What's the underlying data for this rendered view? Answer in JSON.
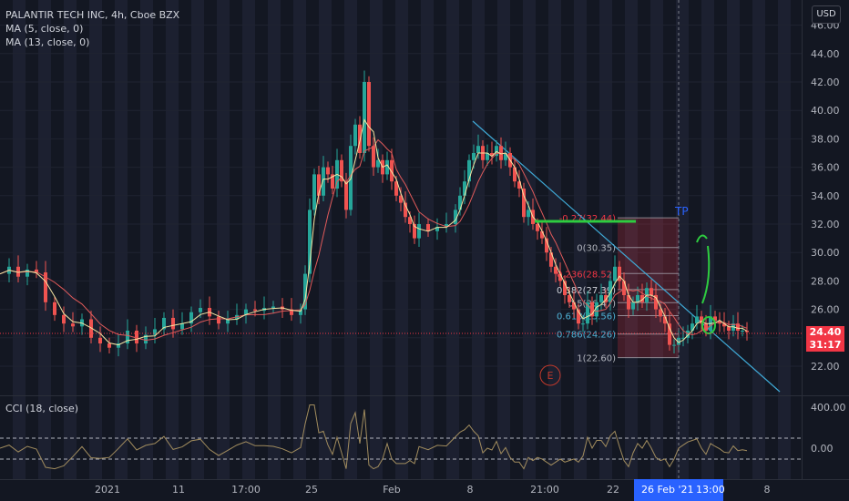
{
  "legend": {
    "symbol": "PALANTIR TECH INC, 4h, Cboe BZX",
    "ma1": "MA (5, close, 0)",
    "ma2": "MA (13, close, 0)",
    "cci": "CCI (18, close)"
  },
  "currency_button": "USD",
  "price_tag": {
    "price": "24.40",
    "countdown": "31:17"
  },
  "crosshair_date": {
    "date": "26 Feb '21",
    "time": "13:00"
  },
  "colors": {
    "up": "#26a69a",
    "down": "#ef5350",
    "ma5": "#f5e6a3",
    "ma13": "#e05a5a",
    "trendline": "#3fa9d6",
    "green_mark": "#2ecc40",
    "fib_band": "#f23645"
  },
  "chart_data": [
    {
      "type": "candlestick",
      "title": "PALANTIR TECH INC, 4h, Cboe BZX",
      "yticks": [
        "46.00",
        "44.00",
        "42.00",
        "40.00",
        "38.00",
        "36.00",
        "34.00",
        "32.00",
        "30.00",
        "28.00",
        "26.00",
        "24.00",
        "22.00"
      ],
      "ylim": [
        21.5,
        46.3
      ],
      "xticks": [
        "2021",
        "11",
        "17:00",
        "25",
        "Feb",
        "8",
        "21:00",
        "22",
        "26 Feb '21",
        "13:00",
        "8"
      ],
      "close_path": [
        [
          0,
          28.5
        ],
        [
          10,
          29.0
        ],
        [
          20,
          28.3
        ],
        [
          30,
          28.8
        ],
        [
          40,
          28.6
        ],
        [
          50,
          26.5
        ],
        [
          60,
          25.6
        ],
        [
          70,
          25.0
        ],
        [
          80,
          24.8
        ],
        [
          90,
          25.3
        ],
        [
          100,
          24.0
        ],
        [
          110,
          23.6
        ],
        [
          120,
          23.3
        ],
        [
          130,
          23.6
        ],
        [
          140,
          24.5
        ],
        [
          150,
          23.6
        ],
        [
          160,
          24.2
        ],
        [
          170,
          24.6
        ],
        [
          180,
          25.4
        ],
        [
          190,
          24.6
        ],
        [
          200,
          25.0
        ],
        [
          210,
          25.8
        ],
        [
          220,
          26.1
        ],
        [
          230,
          25.5
        ],
        [
          240,
          25.0
        ],
        [
          250,
          25.3
        ],
        [
          260,
          25.6
        ],
        [
          270,
          26.0
        ],
        [
          280,
          25.9
        ],
        [
          290,
          26.1
        ],
        [
          300,
          26.2
        ],
        [
          310,
          26.0
        ],
        [
          320,
          25.6
        ],
        [
          330,
          26.0
        ],
        [
          335,
          28.5
        ],
        [
          340,
          33.0
        ],
        [
          345,
          35.5
        ],
        [
          350,
          34.0
        ],
        [
          355,
          36.0
        ],
        [
          360,
          35.5
        ],
        [
          365,
          34.5
        ],
        [
          370,
          36.5
        ],
        [
          375,
          35.0
        ],
        [
          380,
          33.0
        ],
        [
          385,
          37.5
        ],
        [
          390,
          39.0
        ],
        [
          395,
          37.0
        ],
        [
          400,
          42.0
        ],
        [
          405,
          37.5
        ],
        [
          410,
          36.0
        ],
        [
          415,
          36.5
        ],
        [
          420,
          35.5
        ],
        [
          425,
          36.5
        ],
        [
          430,
          35.0
        ],
        [
          435,
          34.0
        ],
        [
          440,
          33.5
        ],
        [
          445,
          32.5
        ],
        [
          450,
          32.0
        ],
        [
          455,
          31.0
        ],
        [
          460,
          32.0
        ],
        [
          470,
          31.5
        ],
        [
          480,
          31.8
        ],
        [
          490,
          32.0
        ],
        [
          500,
          33.0
        ],
        [
          505,
          34.0
        ],
        [
          510,
          35.0
        ],
        [
          515,
          36.5
        ],
        [
          520,
          37.0
        ],
        [
          525,
          37.5
        ],
        [
          530,
          36.5
        ],
        [
          535,
          37.0
        ],
        [
          540,
          36.8
        ],
        [
          545,
          37.5
        ],
        [
          550,
          36.5
        ],
        [
          555,
          37.0
        ],
        [
          560,
          36.0
        ],
        [
          565,
          35.0
        ],
        [
          570,
          34.5
        ],
        [
          575,
          32.5
        ],
        [
          580,
          33.0
        ],
        [
          585,
          32.0
        ],
        [
          590,
          31.5
        ],
        [
          595,
          31.0
        ],
        [
          600,
          30.0
        ],
        [
          605,
          29.0
        ],
        [
          610,
          28.5
        ],
        [
          615,
          28.0
        ],
        [
          620,
          27.0
        ],
        [
          625,
          26.5
        ],
        [
          630,
          26.0
        ],
        [
          635,
          25.0
        ],
        [
          640,
          25.0
        ],
        [
          645,
          26.5
        ],
        [
          650,
          25.5
        ],
        [
          655,
          26.5
        ],
        [
          660,
          27.0
        ],
        [
          665,
          26.5
        ],
        [
          670,
          28.0
        ],
        [
          675,
          29.0
        ],
        [
          680,
          28.0
        ],
        [
          685,
          27.0
        ],
        [
          690,
          26.0
        ],
        [
          695,
          26.5
        ],
        [
          700,
          27.0
        ],
        [
          705,
          26.5
        ],
        [
          710,
          27.5
        ],
        [
          715,
          27.0
        ],
        [
          720,
          26.0
        ],
        [
          725,
          25.5
        ],
        [
          730,
          25.0
        ],
        [
          735,
          23.5
        ],
        [
          740,
          23.5
        ],
        [
          745,
          24.0
        ],
        [
          750,
          24.0
        ],
        [
          755,
          24.5
        ],
        [
          760,
          25.0
        ],
        [
          765,
          25.5
        ],
        [
          770,
          25.0
        ],
        [
          775,
          24.5
        ],
        [
          780,
          25.5
        ],
        [
          785,
          25.2
        ],
        [
          790,
          25.0
        ],
        [
          795,
          24.8
        ],
        [
          800,
          24.5
        ],
        [
          805,
          25.0
        ],
        [
          810,
          24.5
        ],
        [
          815,
          24.5
        ],
        [
          820,
          24.4
        ]
      ],
      "annotations": {
        "fib_levels": [
          {
            "label": "-0.27(32.44)",
            "price": 32.44
          },
          {
            "label": "0(30.35)",
            "price": 30.35
          },
          {
            "label": "0.236(28.52)",
            "price": 28.52
          },
          {
            "label": "0.382(27.39)",
            "price": 27.39
          },
          {
            "label": "0.5(26.47)",
            "price": 26.47
          },
          {
            "label": "0.618(25.56)",
            "price": 25.56
          },
          {
            "label": "0.786(24.26)",
            "price": 24.26
          },
          {
            "label": "1(22.60)",
            "price": 22.6
          }
        ],
        "tp_label": "TP",
        "earnings_marker": "E"
      }
    },
    {
      "type": "line",
      "title": "CCI (18, close)",
      "yticks": [
        "400.00",
        "0.00"
      ],
      "ylim": [
        -250,
        500
      ],
      "band": [
        100,
        -100
      ]
    }
  ]
}
